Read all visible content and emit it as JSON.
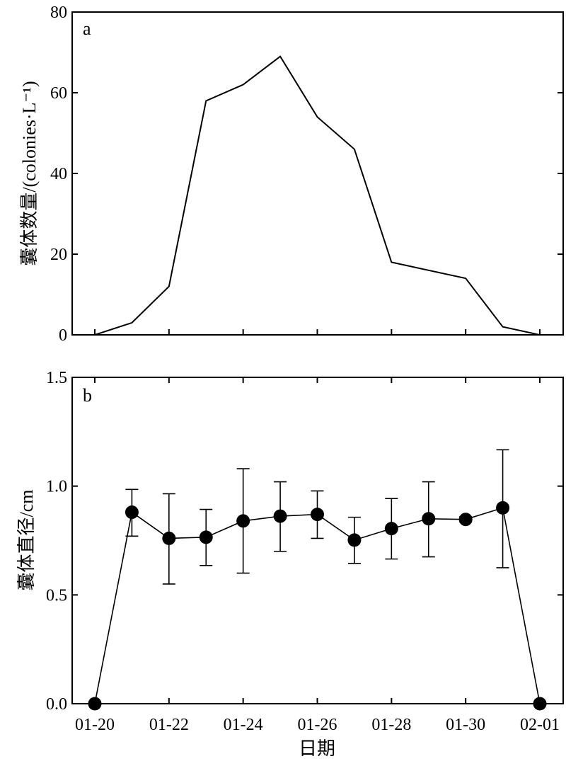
{
  "chart_data": [
    {
      "type": "line",
      "panel_label": "a",
      "ylabel": "囊体数量/(colonies·L⁻¹)",
      "ylim": [
        0,
        80
      ],
      "yticks": [
        0,
        20,
        40,
        60,
        80
      ],
      "xlim": [
        "01-19.85",
        "02-01.35"
      ],
      "series": [
        {
          "x": [
            "01-20",
            "01-21",
            "01-22",
            "01-23",
            "01-24",
            "01-25",
            "01-26",
            "01-27",
            "01-28",
            "01-29",
            "01-30",
            "01-31",
            "02-01"
          ],
          "values": [
            0,
            3,
            12,
            58,
            62,
            69,
            54,
            46,
            18,
            16,
            14,
            2,
            0
          ]
        }
      ]
    },
    {
      "type": "line",
      "panel_label": "b",
      "ylabel": "囊体直径/cm",
      "xlabel": "日期",
      "ylim": [
        0.0,
        1.5
      ],
      "yticks": [
        "0.0",
        "0.5",
        "1.0",
        "1.5"
      ],
      "xticks": [
        "01-20",
        "01-22",
        "01-24",
        "01-26",
        "01-28",
        "01-30",
        "02-01"
      ],
      "series": [
        {
          "x": [
            "01-20",
            "01-21",
            "01-22",
            "01-23",
            "01-24",
            "01-25",
            "01-26",
            "01-27",
            "01-28",
            "01-29",
            "01-30",
            "01-31",
            "02-01"
          ],
          "values": [
            0.0,
            0.88,
            0.76,
            0.765,
            0.84,
            0.862,
            0.87,
            0.752,
            0.805,
            0.85,
            0.847,
            0.9,
            0.0
          ],
          "error_low": [
            null,
            0.77,
            0.55,
            0.635,
            0.6,
            0.7,
            0.76,
            0.645,
            0.665,
            0.675,
            0.835,
            0.625,
            null
          ],
          "error_high": [
            null,
            0.985,
            0.965,
            0.893,
            1.08,
            1.02,
            0.978,
            0.857,
            0.943,
            1.02,
            0.86,
            1.167,
            null
          ],
          "marker": "filled-circle"
        }
      ]
    }
  ]
}
